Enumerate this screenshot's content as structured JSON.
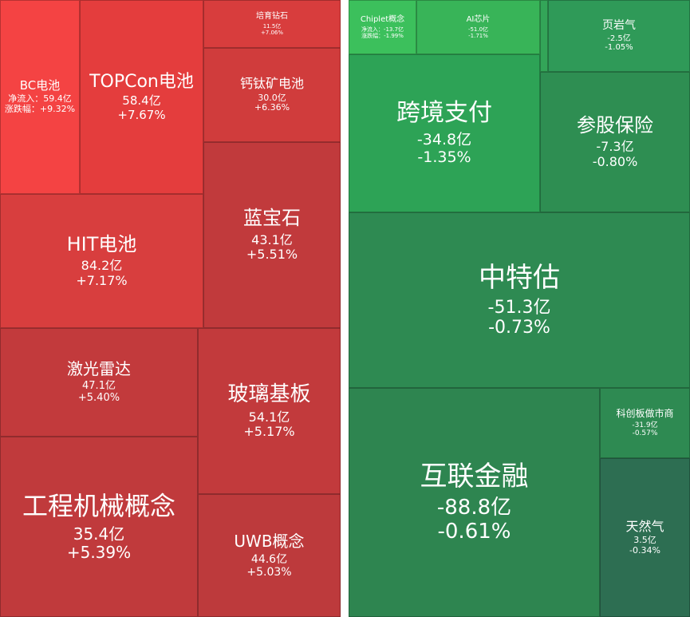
{
  "left_panel": {
    "tiles": [
      {
        "name": "BC电池",
        "lines": [
          "净流入：59.4亿",
          "涨跌幅：+9.32%"
        ],
        "color": "#f44343"
      },
      {
        "name": "TOPCon电池",
        "lines": [
          "58.4亿",
          "+7.67%"
        ],
        "color": "#e43d3d"
      },
      {
        "name": "培育钻石",
        "lines": [
          "11.5亿",
          "+7.06%"
        ],
        "color": "#d83d3d"
      },
      {
        "name": "钙钛矿电池",
        "lines": [
          "30.0亿",
          "+6.36%"
        ],
        "color": "#d03c3c"
      },
      {
        "name": "蓝宝石",
        "lines": [
          "43.1亿",
          "+5.51%"
        ],
        "color": "#c13a3c"
      },
      {
        "name": "HIT电池",
        "lines": [
          "84.2亿",
          "+7.17%"
        ],
        "color": "#d83e3e"
      },
      {
        "name": "激光雷达",
        "lines": [
          "47.1亿",
          "+5.40%"
        ],
        "color": "#c23a3c"
      },
      {
        "name": "玻璃基板",
        "lines": [
          "54.1亿",
          "+5.17%"
        ],
        "color": "#c23a3c"
      },
      {
        "name": "工程机械概念",
        "lines": [
          "35.4亿",
          "+5.39%"
        ],
        "color": "#c03a3c"
      },
      {
        "name": "UWB概念",
        "lines": [
          "44.6亿",
          "+5.03%"
        ],
        "color": "#bd3a3c"
      }
    ]
  },
  "right_panel": {
    "tiles": [
      {
        "name": "Chiplet概念",
        "lines": [
          "净流入：-13.7亿",
          "涨跌幅：-1.99%"
        ],
        "color": "#3cc05c"
      },
      {
        "name": "AI芯片",
        "lines": [
          "-51.0亿",
          "-1.71%"
        ],
        "color": "#38b458"
      },
      {
        "name": "页岩气",
        "lines": [
          "-2.5亿",
          "-1.05%"
        ],
        "color": "#2f9a58"
      },
      {
        "name": "跨境支付",
        "lines": [
          "-34.8亿",
          "-1.35%"
        ],
        "color": "#2da356"
      },
      {
        "name": "参股保险",
        "lines": [
          "-7.3亿",
          "-0.80%"
        ],
        "color": "#2e8e52"
      },
      {
        "name": "中特估",
        "lines": [
          "-51.3亿",
          "-0.73%"
        ],
        "color": "#2e8a52"
      },
      {
        "name": "互联金融",
        "lines": [
          "-88.8亿",
          "-0.61%"
        ],
        "color": "#2e8550"
      },
      {
        "name": "科创板做市商",
        "lines": [
          "-31.9亿",
          "-0.57%"
        ],
        "color": "#2e8a52"
      },
      {
        "name": "天然气",
        "lines": [
          "3.5亿",
          "-0.34%"
        ],
        "color": "#2d6e52"
      }
    ]
  }
}
